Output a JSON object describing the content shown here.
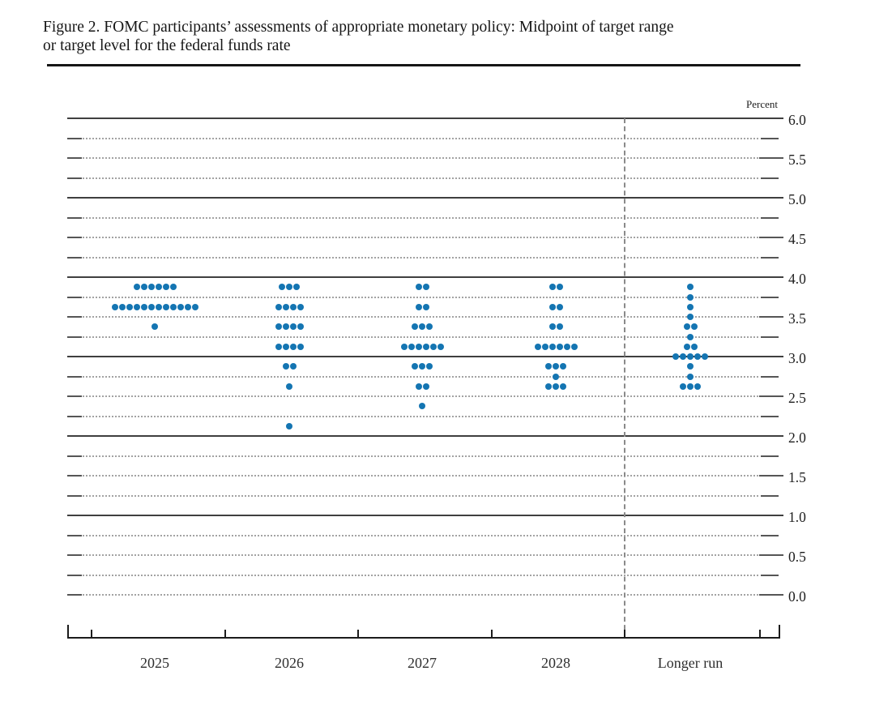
{
  "figure": {
    "title_line1": "Figure 2. FOMC participants’ assessments of appropriate monetary policy: Midpoint of target range",
    "title_line2": "or target level for the federal funds rate"
  },
  "axis": {
    "percent_label": "Percent",
    "y_tick_labels": [
      "6.0",
      "5.5",
      "5.0",
      "4.5",
      "4.0",
      "3.5",
      "3.0",
      "2.5",
      "2.0",
      "1.5",
      "1.0",
      "0.5",
      "0.0"
    ],
    "x_labels": [
      "2025",
      "2026",
      "2027",
      "2028",
      "Longer run"
    ]
  },
  "colors": {
    "dot": "#1475b2",
    "solid_gridline": "#3f3f3f",
    "dotted_gridline": "#a3a3a3",
    "axis_line": "#1c1c1c",
    "dashed_divider": "#8a8a8a"
  },
  "chart_data": {
    "type": "scatter",
    "title": "Figure 2. FOMC participants’ assessments of appropriate monetary policy: Midpoint of target range or target level for the federal funds rate",
    "ylabel": "Percent",
    "ylim": [
      0.0,
      6.0
    ],
    "gridline_step": 0.25,
    "y_label_step": 0.5,
    "solid_gridlines_at": [
      1.0,
      2.0,
      3.0,
      4.0,
      5.0,
      6.0
    ],
    "legend": "none",
    "categories": [
      "2025",
      "2026",
      "2027",
      "2028",
      "Longer run"
    ],
    "participants_per_column": 19,
    "series": [
      {
        "name": "2025",
        "dots": [
          {
            "midpoint": 3.875,
            "count": 6
          },
          {
            "midpoint": 3.625,
            "count": 12
          },
          {
            "midpoint": 3.375,
            "count": 1
          }
        ]
      },
      {
        "name": "2026",
        "dots": [
          {
            "midpoint": 3.875,
            "count": 3
          },
          {
            "midpoint": 3.625,
            "count": 4
          },
          {
            "midpoint": 3.375,
            "count": 4
          },
          {
            "midpoint": 3.125,
            "count": 4
          },
          {
            "midpoint": 2.875,
            "count": 2
          },
          {
            "midpoint": 2.625,
            "count": 1
          },
          {
            "midpoint": 2.125,
            "count": 1
          }
        ]
      },
      {
        "name": "2027",
        "dots": [
          {
            "midpoint": 3.875,
            "count": 2
          },
          {
            "midpoint": 3.625,
            "count": 2
          },
          {
            "midpoint": 3.375,
            "count": 3
          },
          {
            "midpoint": 3.125,
            "count": 6
          },
          {
            "midpoint": 2.875,
            "count": 3
          },
          {
            "midpoint": 2.625,
            "count": 2
          },
          {
            "midpoint": 2.375,
            "count": 1
          }
        ]
      },
      {
        "name": "2028",
        "dots": [
          {
            "midpoint": 3.875,
            "count": 2
          },
          {
            "midpoint": 3.625,
            "count": 2
          },
          {
            "midpoint": 3.375,
            "count": 2
          },
          {
            "midpoint": 3.125,
            "count": 6
          },
          {
            "midpoint": 2.875,
            "count": 3
          },
          {
            "midpoint": 2.75,
            "count": 1
          },
          {
            "midpoint": 2.625,
            "count": 3
          }
        ]
      },
      {
        "name": "Longer run",
        "dots": [
          {
            "midpoint": 3.875,
            "count": 1
          },
          {
            "midpoint": 3.75,
            "count": 1
          },
          {
            "midpoint": 3.625,
            "count": 1
          },
          {
            "midpoint": 3.5,
            "count": 1
          },
          {
            "midpoint": 3.375,
            "count": 2
          },
          {
            "midpoint": 3.25,
            "count": 1
          },
          {
            "midpoint": 3.125,
            "count": 2
          },
          {
            "midpoint": 3.0,
            "count": 5
          },
          {
            "midpoint": 2.875,
            "count": 1
          },
          {
            "midpoint": 2.75,
            "count": 1
          },
          {
            "midpoint": 2.625,
            "count": 3
          }
        ]
      }
    ]
  }
}
